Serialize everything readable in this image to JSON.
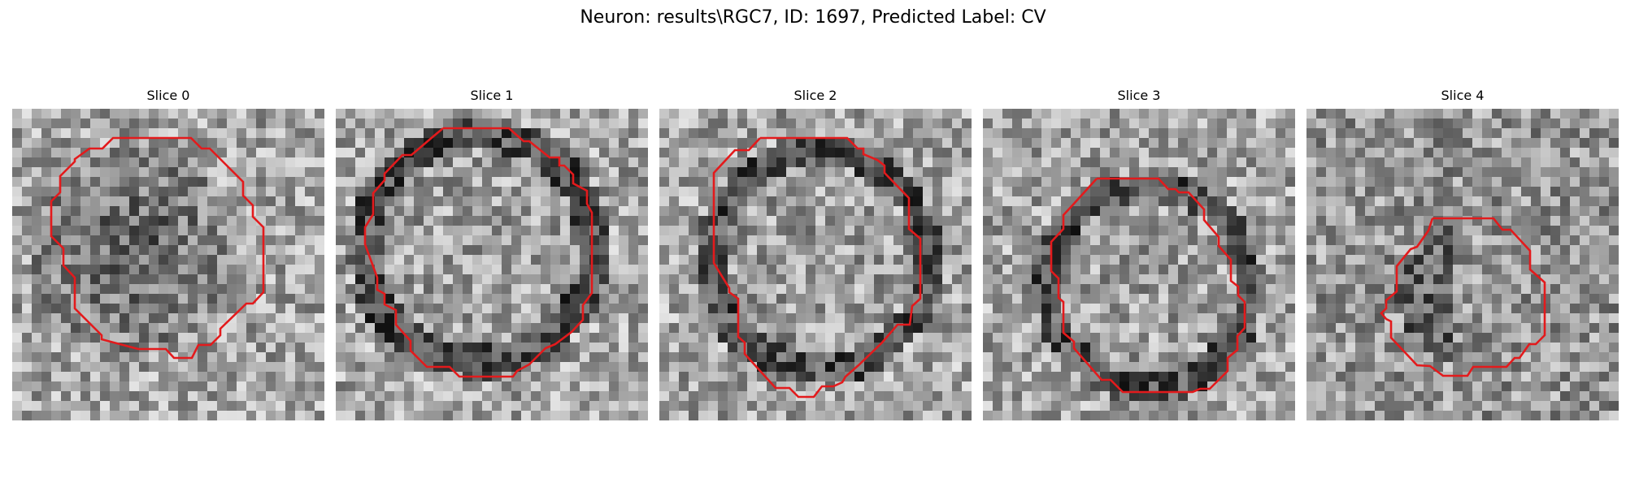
{
  "figure": {
    "title": "Neuron: results\\RGC7, ID: 1697, Predicted Label: CV",
    "contour_color": "#e31a1c"
  },
  "panels": [
    {
      "title": "Slice 0",
      "cell_brightness": "dark"
    },
    {
      "title": "Slice 1",
      "cell_brightness": "light"
    },
    {
      "title": "Slice 2",
      "cell_brightness": "light"
    },
    {
      "title": "Slice 3",
      "cell_brightness": "light"
    },
    {
      "title": "Slice 4",
      "cell_brightness": "mixed"
    }
  ]
}
